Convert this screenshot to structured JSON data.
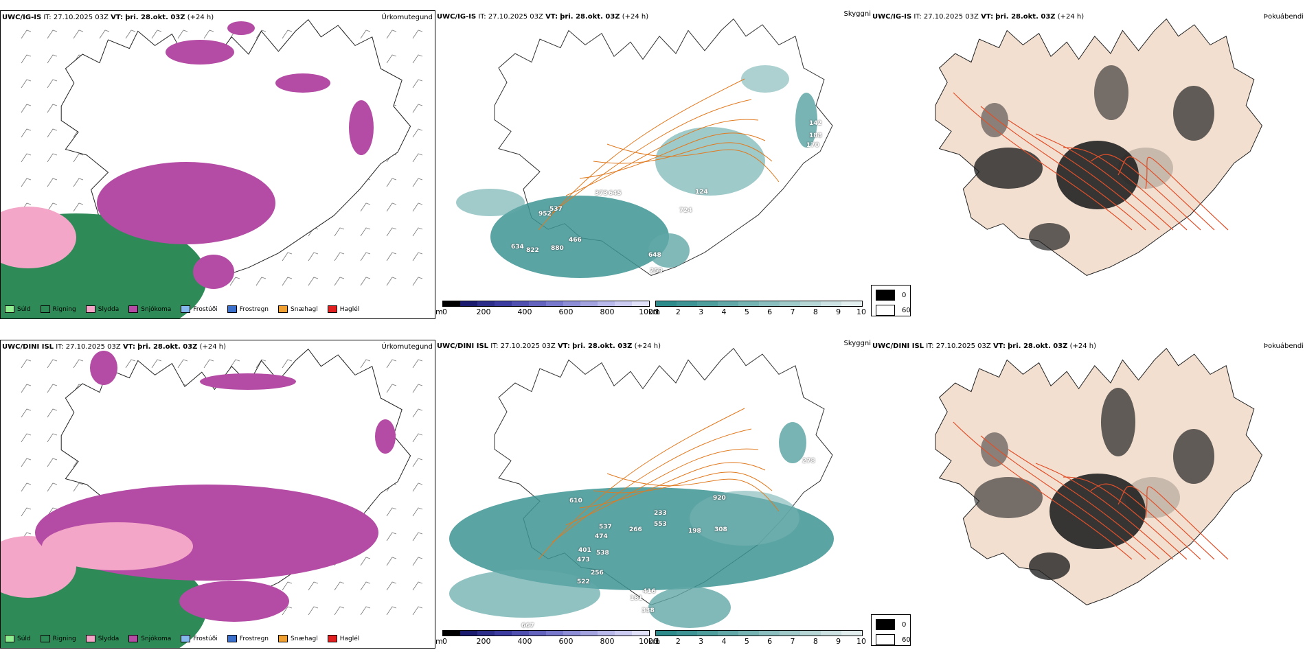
{
  "rows": [
    {
      "model": "UWC/IG-IS",
      "it_label": "IT:",
      "it_value": "27.10.2025 03Z",
      "vt_label": "VT:",
      "vt_value": "þri. 28.okt. 03Z",
      "lead": "(+24 h)",
      "panel_titles": [
        "Úrkomutegund",
        "Skyggni",
        "Þokuábendi"
      ],
      "cloud_labels": [
        "373",
        "645",
        "537",
        "952",
        "466",
        "634",
        "822",
        "880",
        "648",
        "253",
        "724",
        "124",
        "142",
        "188",
        "170"
      ]
    },
    {
      "model": "UWC/DINI ISL",
      "it_label": "IT:",
      "it_value": "27.10.2025 03Z",
      "vt_label": "VT:",
      "vt_value": "þri. 28.okt. 03Z",
      "lead": "(+24 h)",
      "panel_titles": [
        "Úrkomutegund",
        "Skyggni",
        "Þokuábendi"
      ],
      "cloud_labels": [
        "610",
        "233",
        "553",
        "537",
        "266",
        "474",
        "401",
        "538",
        "473",
        "256",
        "522",
        "181",
        "416",
        "338",
        "198",
        "308",
        "278",
        "667",
        "920"
      ]
    }
  ],
  "precip_legend": [
    {
      "label": "Súld",
      "color": "#90ee90"
    },
    {
      "label": "Rigning",
      "color": "#2e8b57"
    },
    {
      "label": "Slydda",
      "color": "#f4a6c8"
    },
    {
      "label": "Snjókoma",
      "color": "#b44ba4"
    },
    {
      "label": "Frostúði",
      "color": "#87b8ee"
    },
    {
      "label": "Frostregn",
      "color": "#3b6fcc"
    },
    {
      "label": "Snæhagl",
      "color": "#f0a030"
    },
    {
      "label": "Haglél",
      "color": "#e02020"
    }
  ],
  "cloudbase_bar": {
    "unit": "m",
    "ticks": [
      "0",
      "200",
      "400",
      "600",
      "800",
      "1000"
    ],
    "colors": [
      "#000000",
      "#1a1a6e",
      "#2d2d8a",
      "#3c3ca0",
      "#5050b0",
      "#6464bf",
      "#7878cc",
      "#8e8ed6",
      "#a3a3e0",
      "#b8b8ea",
      "#ccccf2",
      "#e0e0f8"
    ]
  },
  "visibility_bar": {
    "unit": "km",
    "ticks": [
      "1",
      "2",
      "3",
      "4",
      "5",
      "6",
      "7",
      "8",
      "9",
      "10"
    ],
    "colors": [
      "#2e8b8b",
      "#3e9494",
      "#4f9e9e",
      "#62a8a8",
      "#76b3b3",
      "#8bbfbf",
      "#a0caca",
      "#b6d6d6",
      "#cce2e2",
      "#e2eeee"
    ]
  },
  "fog_legend": [
    {
      "label": "0",
      "color": "#000000"
    },
    {
      "label": "60",
      "color": "#ffffff"
    }
  ]
}
